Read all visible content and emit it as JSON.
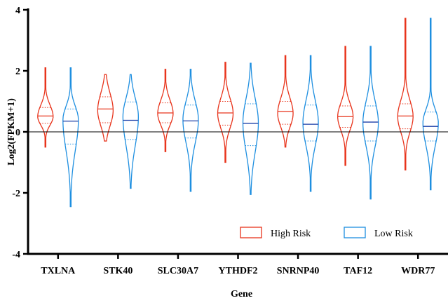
{
  "chart_data": {
    "type": "violin",
    "title": "",
    "xlabel": "Gene",
    "ylabel": "Log2(FPKM+1)",
    "ylim": [
      -4,
      4
    ],
    "yticks": [
      -4,
      -2,
      0,
      2,
      4
    ],
    "reference_line": 0,
    "grid": false,
    "legend_position": "bottom-right",
    "categories": [
      "TXLNA",
      "STK40",
      "SLC30A7",
      "YTHDF2",
      "SNRNP40",
      "TAF12",
      "WDR77"
    ],
    "series": [
      {
        "name": "High Risk",
        "color": "#e8341c",
        "min": [
          -0.5,
          -0.3,
          -0.65,
          -1.0,
          -0.5,
          -1.1,
          -1.25
        ],
        "q1": [
          0.28,
          0.3,
          0.3,
          0.22,
          0.25,
          0.15,
          0.1
        ],
        "median": [
          0.52,
          0.75,
          0.62,
          0.62,
          0.67,
          0.5,
          0.52
        ],
        "q3": [
          0.8,
          1.15,
          0.95,
          1.0,
          1.0,
          0.85,
          0.92
        ],
        "max": [
          2.1,
          1.88,
          2.05,
          2.28,
          2.5,
          2.8,
          3.72
        ],
        "mode": [
          0.5,
          0.7,
          0.6,
          0.6,
          0.6,
          0.5,
          0.5
        ]
      },
      {
        "name": "Low Risk",
        "color": "#1e8fe0",
        "min": [
          -2.45,
          -1.85,
          -1.95,
          -2.05,
          -1.95,
          -2.2,
          -1.9
        ],
        "q1": [
          -0.4,
          -0.25,
          -0.2,
          -0.45,
          -0.3,
          -0.3,
          -0.3
        ],
        "median": [
          0.35,
          0.38,
          0.36,
          0.28,
          0.25,
          0.32,
          0.18
        ],
        "q3": [
          0.75,
          0.98,
          0.88,
          0.92,
          0.88,
          0.85,
          0.65
        ],
        "max": [
          2.1,
          1.88,
          2.05,
          2.25,
          2.5,
          2.8,
          3.72
        ],
        "mode": [
          0.4,
          0.5,
          0.4,
          0.3,
          0.3,
          0.3,
          0.3
        ]
      }
    ]
  }
}
